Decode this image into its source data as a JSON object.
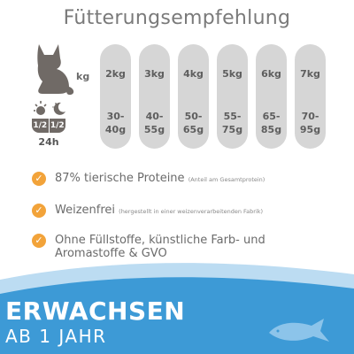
{
  "title": "Fütterungsempfehlung",
  "table": {
    "kg_label": "kg",
    "rows": [
      {
        "weight": "2kg",
        "gram_top": "30-",
        "gram_bottom": "40g"
      },
      {
        "weight": "3kg",
        "gram_top": "40-",
        "gram_bottom": "55g"
      },
      {
        "weight": "4kg",
        "gram_top": "50-",
        "gram_bottom": "65g"
      },
      {
        "weight": "5kg",
        "gram_top": "55-",
        "gram_bottom": "75g"
      },
      {
        "weight": "6kg",
        "gram_top": "65-",
        "gram_bottom": "85g"
      },
      {
        "weight": "7kg",
        "gram_top": "70-",
        "gram_bottom": "95g"
      }
    ],
    "daynight": {
      "half_left": "1/2",
      "half_right": "1/2",
      "period": "24h"
    }
  },
  "features": [
    {
      "text": "87% tierische Proteine",
      "note": "(Anteil am Gesamtprotein)"
    },
    {
      "text": "Weizenfrei",
      "note": "(hergestellt in einer weizenverarbeitenden Fabrik)"
    },
    {
      "text": "Ohne Füllstoffe, künstliche Farb- und Aromastoffe & GVO",
      "note": ""
    }
  ],
  "banner": {
    "line1": "ERWACHSEN",
    "line2": "AB 1 JAHR"
  },
  "colors": {
    "accent": "#f2a33a",
    "banner_blue": "#3d9ad6",
    "pill_gray": "#d6d6d6",
    "icon_gray": "#706a66"
  },
  "icons": {
    "cat": "cat-icon",
    "sun": "sun-icon",
    "moon": "moon-icon",
    "check": "check-icon",
    "fish": "fish-icon"
  }
}
